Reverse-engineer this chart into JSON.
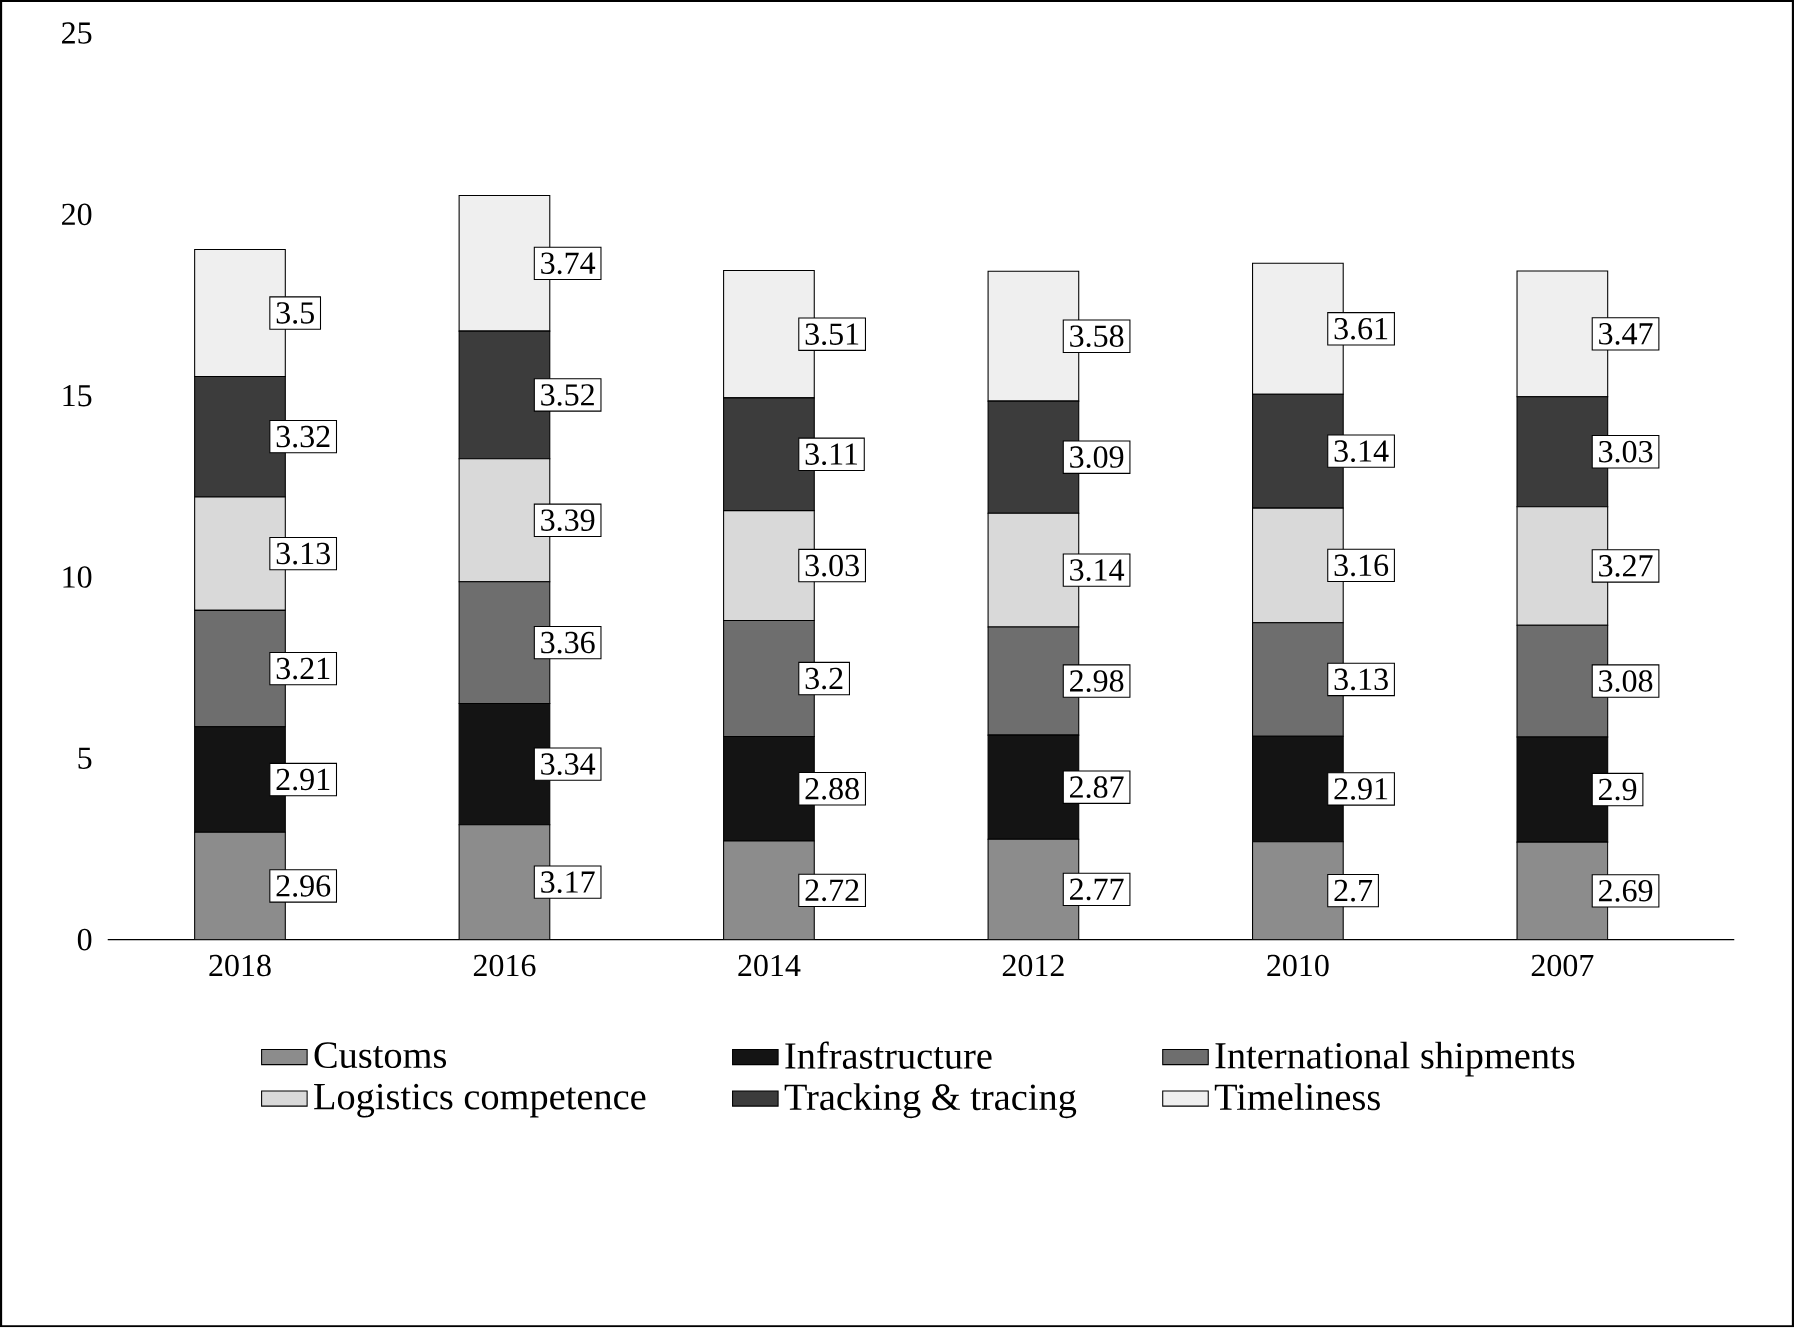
{
  "chart_data": {
    "type": "bar",
    "stacked": true,
    "categories": [
      "2018",
      "2016",
      "2014",
      "2012",
      "2010",
      "2007"
    ],
    "series": [
      {
        "name": "Customs",
        "color": "#8c8c8c",
        "values": [
          2.96,
          3.17,
          2.72,
          2.77,
          2.7,
          2.69
        ]
      },
      {
        "name": "Infrastructure",
        "color": "#141414",
        "values": [
          2.91,
          3.34,
          2.88,
          2.87,
          2.91,
          2.9
        ]
      },
      {
        "name": "International shipments",
        "color": "#6e6e6e",
        "values": [
          3.21,
          3.36,
          3.2,
          2.98,
          3.13,
          3.08
        ]
      },
      {
        "name": "Logistics competence",
        "color": "#d9d9d9",
        "values": [
          3.13,
          3.39,
          3.03,
          3.14,
          3.16,
          3.27
        ]
      },
      {
        "name": "Tracking & tracing",
        "color": "#3c3c3c",
        "values": [
          3.32,
          3.52,
          3.11,
          3.09,
          3.14,
          3.03
        ]
      },
      {
        "name": "Timeliness",
        "color": "#efefef",
        "values": [
          3.5,
          3.74,
          3.51,
          3.58,
          3.61,
          3.47
        ]
      }
    ],
    "ylim": [
      0,
      25
    ],
    "yticks": [
      0,
      5,
      10,
      15,
      20,
      25
    ],
    "data_labels": true,
    "legend": "bottom",
    "grid": false
  }
}
